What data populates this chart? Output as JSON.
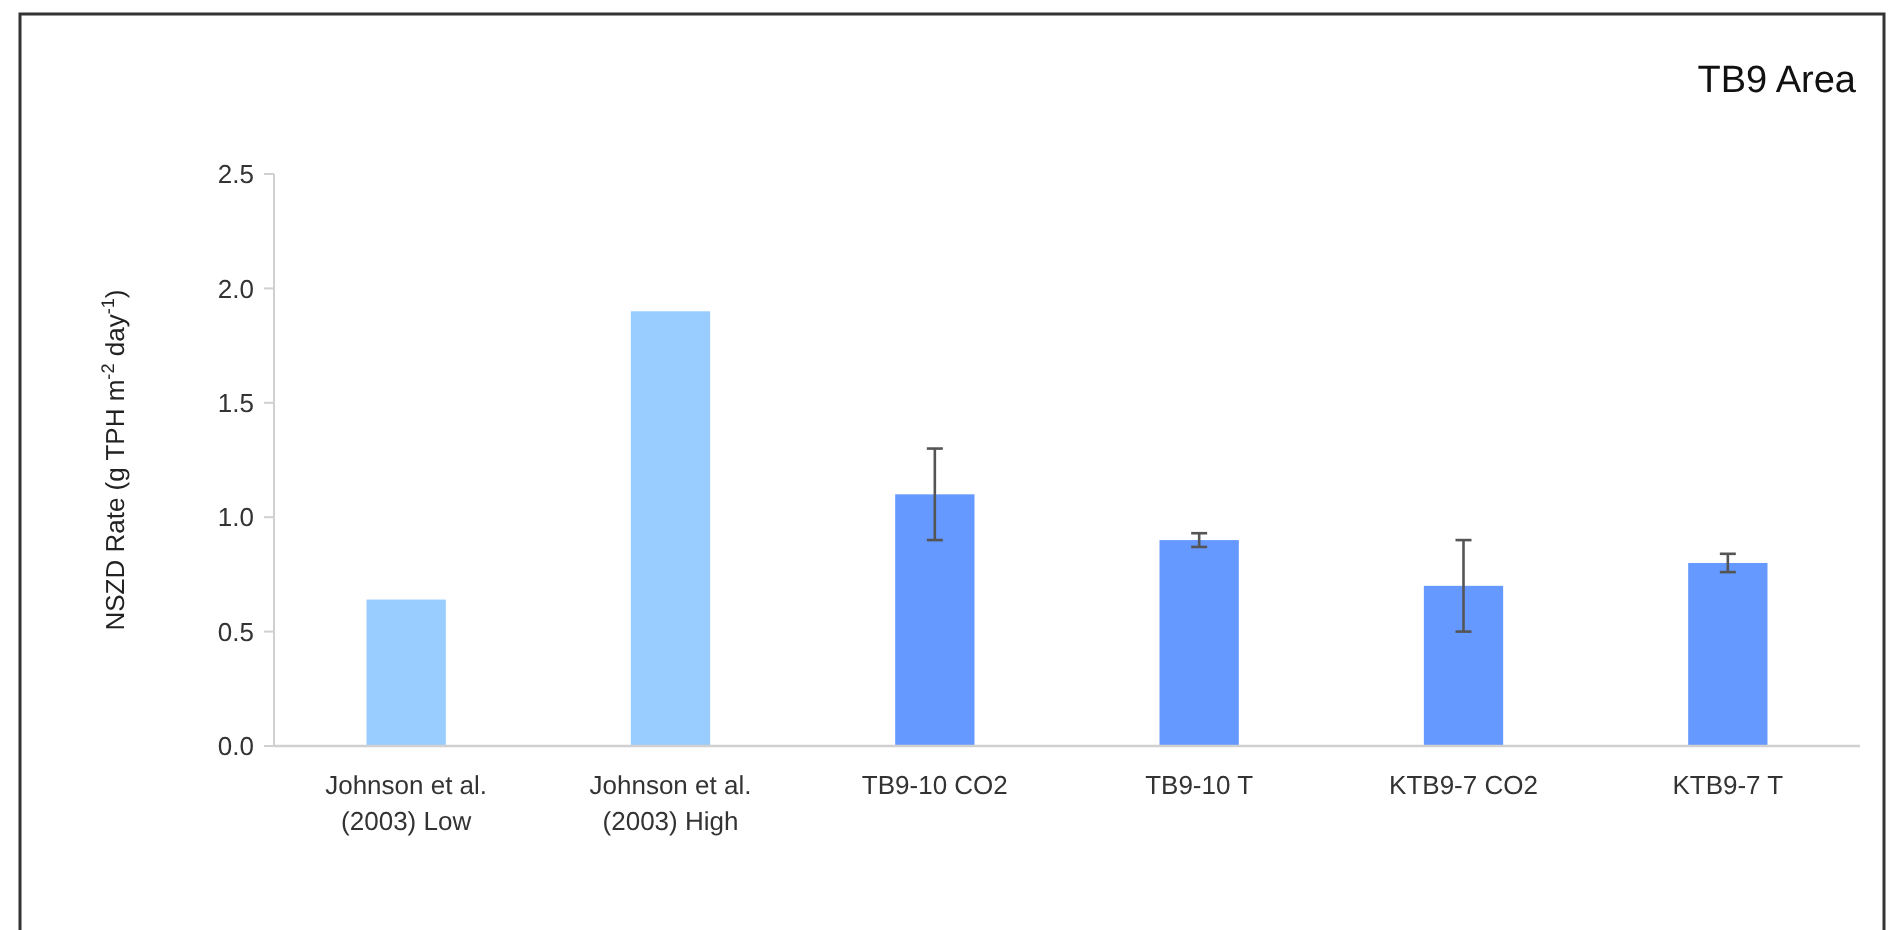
{
  "chart_data": {
    "type": "bar",
    "title": "TB9 Area",
    "ylabel": "NSZD Rate (g TPH m$^{-2}$ day$^{-1}$)",
    "categories": [
      "Johnson et al. (2003) Low",
      "Johnson et al. (2003) High",
      "TB9-10 CO2",
      "TB9-10 T",
      "KTB9-7 CO2",
      "KTB9-7 T"
    ],
    "values": [
      0.64,
      1.9,
      1.1,
      0.9,
      0.7,
      0.8
    ],
    "errors": [
      null,
      null,
      0.2,
      0.03,
      0.2,
      0.04
    ],
    "colors": [
      "#99ccff",
      "#99ccff",
      "#6699ff",
      "#6699ff",
      "#6699ff",
      "#6699ff"
    ],
    "ylim": [
      0,
      2.5
    ],
    "yticks": [
      {
        "value": 0,
        "label": "0.0"
      },
      {
        "value": 0.5,
        "label": "0.5"
      },
      {
        "value": 1,
        "label": "1.0"
      },
      {
        "value": 1.5,
        "label": "1.5"
      },
      {
        "value": 2,
        "label": "2.0"
      },
      {
        "value": 2.5,
        "label": "2.5"
      }
    ],
    "grid": false
  }
}
